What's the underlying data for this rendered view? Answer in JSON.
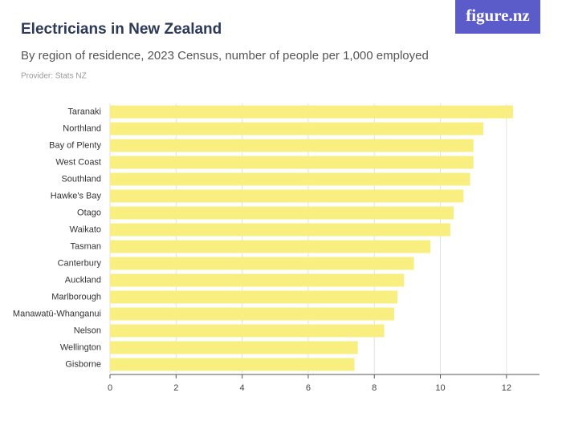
{
  "logo": "figure.nz",
  "chart_data": {
    "type": "barh",
    "title": "Electricians in New Zealand",
    "subtitle": "By region of residence, 2023 Census, number of people per 1,000 employed",
    "provider": "Provider: Stats NZ",
    "categories": [
      "Taranaki",
      "Northland",
      "Bay of Plenty",
      "West Coast",
      "Southland",
      "Hawke's Bay",
      "Otago",
      "Waikato",
      "Tasman",
      "Canterbury",
      "Auckland",
      "Marlborough",
      "Manawatū-Whanganui",
      "Nelson",
      "Wellington",
      "Gisborne"
    ],
    "values": [
      12.2,
      11.3,
      11.0,
      11.0,
      10.9,
      10.7,
      10.4,
      10.3,
      9.7,
      9.2,
      8.9,
      8.7,
      8.6,
      8.3,
      7.5,
      7.4
    ],
    "color": "#f8ef80",
    "xlim": [
      0,
      13
    ],
    "xticks": [
      0,
      2,
      4,
      6,
      8,
      10,
      12
    ],
    "grid": true
  }
}
